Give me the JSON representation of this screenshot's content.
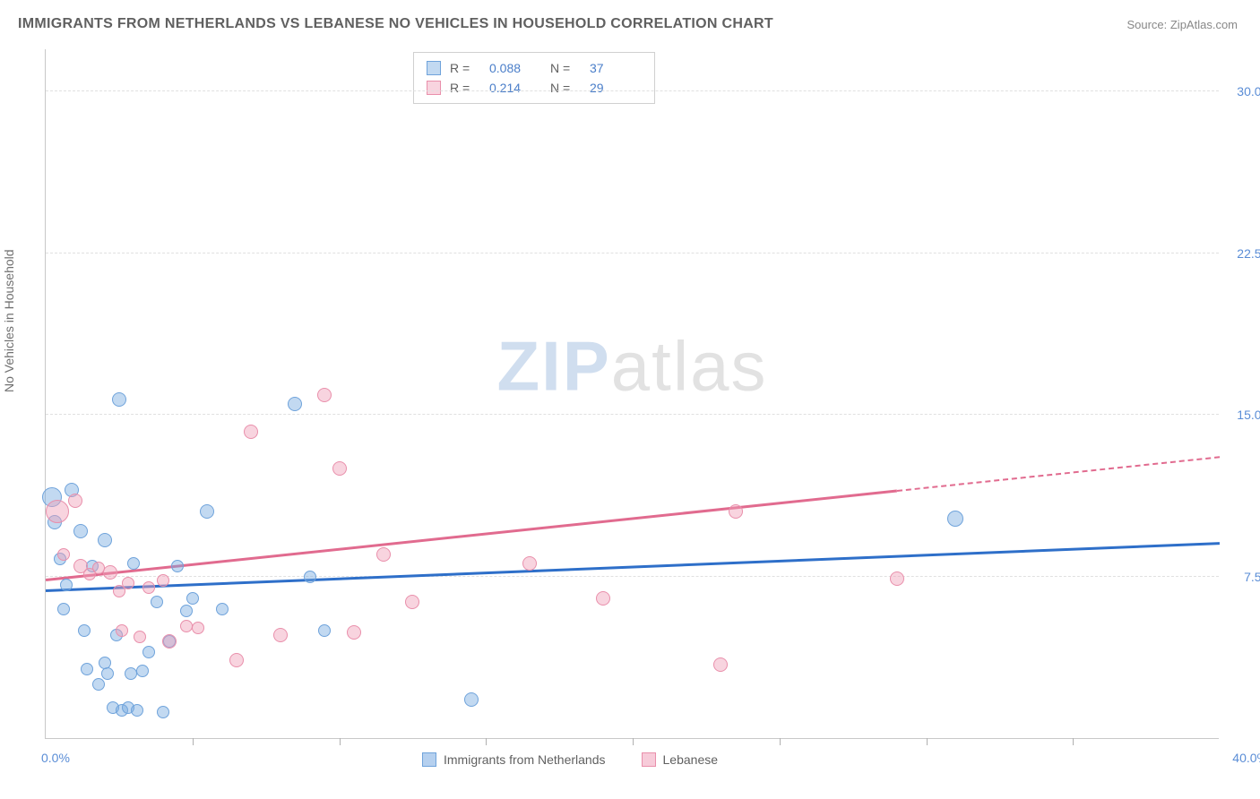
{
  "title": "IMMIGRANTS FROM NETHERLANDS VS LEBANESE NO VEHICLES IN HOUSEHOLD CORRELATION CHART",
  "source": "Source: ZipAtlas.com",
  "y_axis_label": "No Vehicles in Household",
  "watermark": {
    "part1": "ZIP",
    "part2": "atlas"
  },
  "chart": {
    "type": "scatter",
    "xlim": [
      0,
      40
    ],
    "ylim": [
      0,
      32
    ],
    "x_ticks": [
      0,
      5,
      10,
      15,
      20,
      25,
      30,
      35,
      40
    ],
    "x_tick_labels_shown": {
      "first": "0.0%",
      "last": "40.0%"
    },
    "y_ticks": [
      7.5,
      15.0,
      22.5,
      30.0
    ],
    "y_tick_labels": [
      "7.5%",
      "15.0%",
      "22.5%",
      "30.0%"
    ],
    "grid_color": "#e0e0e0",
    "background_color": "#ffffff",
    "axis_color": "#c8c8c8",
    "tick_label_color": "#5a8dd6",
    "series": [
      {
        "name": "Immigrants from Netherlands",
        "fill": "rgba(120,170,225,0.45)",
        "stroke": "#6fa3db",
        "line_color": "#2e6fc9",
        "r_value": "0.088",
        "n_value": "37",
        "trend": {
          "x1": 0,
          "y1": 6.8,
          "x2": 40,
          "y2": 9.0,
          "solid_until_x": 40
        },
        "points": [
          {
            "x": 0.2,
            "y": 11.2,
            "r": 11
          },
          {
            "x": 0.3,
            "y": 10.0,
            "r": 8
          },
          {
            "x": 0.5,
            "y": 8.3,
            "r": 7
          },
          {
            "x": 0.6,
            "y": 6.0,
            "r": 7
          },
          {
            "x": 0.7,
            "y": 7.1,
            "r": 7
          },
          {
            "x": 0.9,
            "y": 11.5,
            "r": 8
          },
          {
            "x": 1.2,
            "y": 9.6,
            "r": 8
          },
          {
            "x": 1.3,
            "y": 5.0,
            "r": 7
          },
          {
            "x": 1.4,
            "y": 3.2,
            "r": 7
          },
          {
            "x": 1.6,
            "y": 8.0,
            "r": 7
          },
          {
            "x": 1.8,
            "y": 2.5,
            "r": 7
          },
          {
            "x": 2.0,
            "y": 9.2,
            "r": 8
          },
          {
            "x": 2.1,
            "y": 3.0,
            "r": 7
          },
          {
            "x": 2.3,
            "y": 1.4,
            "r": 7
          },
          {
            "x": 2.4,
            "y": 4.8,
            "r": 7
          },
          {
            "x": 2.5,
            "y": 15.7,
            "r": 8
          },
          {
            "x": 2.6,
            "y": 1.3,
            "r": 7
          },
          {
            "x": 2.8,
            "y": 1.4,
            "r": 7
          },
          {
            "x": 2.9,
            "y": 3.0,
            "r": 7
          },
          {
            "x": 3.0,
            "y": 8.1,
            "r": 7
          },
          {
            "x": 3.1,
            "y": 1.3,
            "r": 7
          },
          {
            "x": 3.3,
            "y": 3.1,
            "r": 7
          },
          {
            "x": 3.5,
            "y": 4.0,
            "r": 7
          },
          {
            "x": 3.8,
            "y": 6.3,
            "r": 7
          },
          {
            "x": 4.0,
            "y": 1.2,
            "r": 7
          },
          {
            "x": 4.2,
            "y": 4.5,
            "r": 7
          },
          {
            "x": 4.5,
            "y": 8.0,
            "r": 7
          },
          {
            "x": 4.8,
            "y": 5.9,
            "r": 7
          },
          {
            "x": 5.0,
            "y": 6.5,
            "r": 7
          },
          {
            "x": 5.5,
            "y": 10.5,
            "r": 8
          },
          {
            "x": 6.0,
            "y": 6.0,
            "r": 7
          },
          {
            "x": 8.5,
            "y": 15.5,
            "r": 8
          },
          {
            "x": 9.0,
            "y": 7.5,
            "r": 7
          },
          {
            "x": 9.5,
            "y": 5.0,
            "r": 7
          },
          {
            "x": 14.5,
            "y": 1.8,
            "r": 8
          },
          {
            "x": 31.0,
            "y": 10.2,
            "r": 9
          },
          {
            "x": 2.0,
            "y": 3.5,
            "r": 7
          }
        ]
      },
      {
        "name": "Lebanese",
        "fill": "rgba(240,160,185,0.45)",
        "stroke": "#e98fab",
        "line_color": "#e16b8f",
        "r_value": "0.214",
        "n_value": "29",
        "trend": {
          "x1": 0,
          "y1": 7.3,
          "x2": 40,
          "y2": 13.0,
          "solid_until_x": 29
        },
        "points": [
          {
            "x": 0.4,
            "y": 10.5,
            "r": 13
          },
          {
            "x": 0.6,
            "y": 8.5,
            "r": 7
          },
          {
            "x": 1.0,
            "y": 11.0,
            "r": 8
          },
          {
            "x": 1.2,
            "y": 8.0,
            "r": 8
          },
          {
            "x": 1.5,
            "y": 7.6,
            "r": 7
          },
          {
            "x": 1.8,
            "y": 7.9,
            "r": 7
          },
          {
            "x": 2.2,
            "y": 7.7,
            "r": 8
          },
          {
            "x": 2.5,
            "y": 6.8,
            "r": 7
          },
          {
            "x": 2.8,
            "y": 7.2,
            "r": 7
          },
          {
            "x": 3.2,
            "y": 4.7,
            "r": 7
          },
          {
            "x": 3.5,
            "y": 7.0,
            "r": 7
          },
          {
            "x": 4.0,
            "y": 7.3,
            "r": 7
          },
          {
            "x": 4.2,
            "y": 4.5,
            "r": 8
          },
          {
            "x": 4.8,
            "y": 5.2,
            "r": 7
          },
          {
            "x": 5.2,
            "y": 5.1,
            "r": 7
          },
          {
            "x": 6.5,
            "y": 3.6,
            "r": 8
          },
          {
            "x": 7.0,
            "y": 14.2,
            "r": 8
          },
          {
            "x": 8.0,
            "y": 4.8,
            "r": 8
          },
          {
            "x": 9.5,
            "y": 15.9,
            "r": 8
          },
          {
            "x": 10.0,
            "y": 12.5,
            "r": 8
          },
          {
            "x": 10.5,
            "y": 4.9,
            "r": 8
          },
          {
            "x": 11.5,
            "y": 8.5,
            "r": 8
          },
          {
            "x": 12.5,
            "y": 6.3,
            "r": 8
          },
          {
            "x": 16.5,
            "y": 8.1,
            "r": 8
          },
          {
            "x": 19.0,
            "y": 6.5,
            "r": 8
          },
          {
            "x": 23.0,
            "y": 3.4,
            "r": 8
          },
          {
            "x": 23.5,
            "y": 10.5,
            "r": 8
          },
          {
            "x": 29.0,
            "y": 7.4,
            "r": 8
          },
          {
            "x": 2.6,
            "y": 5.0,
            "r": 7
          }
        ]
      }
    ],
    "legend_bottom": [
      {
        "label": "Immigrants from Netherlands",
        "fill": "rgba(120,170,225,0.55)",
        "stroke": "#6fa3db"
      },
      {
        "label": "Lebanese",
        "fill": "rgba(240,160,185,0.55)",
        "stroke": "#e98fab"
      }
    ]
  }
}
